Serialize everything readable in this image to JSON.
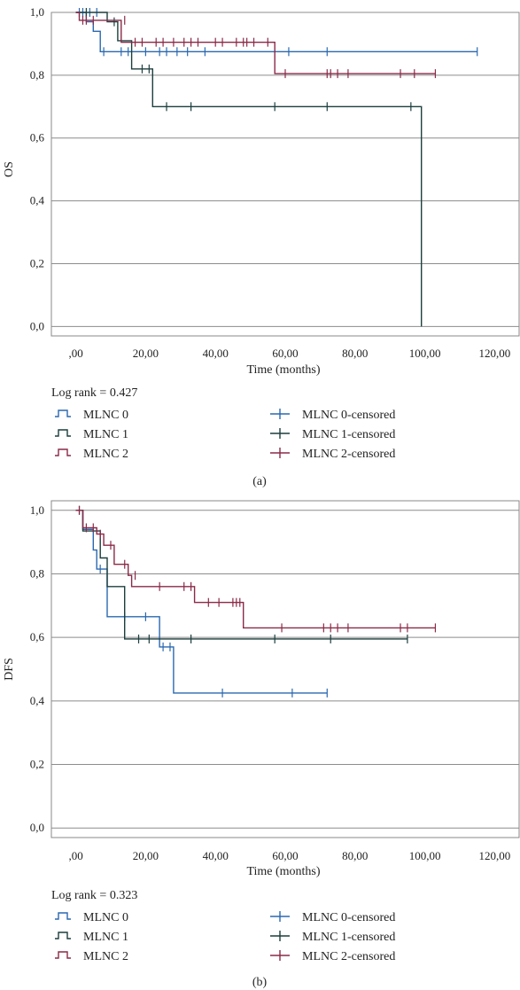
{
  "chart_data": [
    {
      "type": "line",
      "caption": "(a)",
      "ylabel": "OS",
      "xlabel": "Time (months)",
      "x_ticks": [
        ",00",
        "20,00",
        "40,00",
        "60,00",
        "80,00",
        "100,00",
        "120,00"
      ],
      "y_ticks": [
        "0,0",
        "0,2",
        "0,4",
        "0,6",
        "0,8",
        "1,0"
      ],
      "xlim": [
        -7,
        127
      ],
      "ylim": [
        -0.03,
        1.0
      ],
      "grid": "horizontal",
      "log_rank": "Log rank = 0.427",
      "series": [
        {
          "name": "MLNC 0",
          "color": "#2a68b0",
          "steps": [
            [
              0,
              1.0
            ],
            [
              3,
              1.0
            ],
            [
              3,
              0.97
            ],
            [
              5,
              0.97
            ],
            [
              5,
              0.94
            ],
            [
              7,
              0.94
            ],
            [
              7,
              0.875
            ],
            [
              115,
              0.875
            ]
          ],
          "censored": [
            [
              1,
              1.0
            ],
            [
              2,
              1.0
            ],
            [
              4,
              1.0
            ],
            [
              6,
              1.0
            ],
            [
              8,
              0.875
            ],
            [
              13,
              0.875
            ],
            [
              15,
              0.875
            ],
            [
              20,
              0.875
            ],
            [
              24,
              0.875
            ],
            [
              26,
              0.875
            ],
            [
              29,
              0.875
            ],
            [
              32,
              0.875
            ],
            [
              37,
              0.875
            ],
            [
              61,
              0.875
            ],
            [
              72,
              0.875
            ],
            [
              115,
              0.875
            ]
          ]
        },
        {
          "name": "MLNC 1",
          "color": "#1c3f3d",
          "steps": [
            [
              0,
              1.0
            ],
            [
              9,
              1.0
            ],
            [
              9,
              0.97
            ],
            [
              12,
              0.97
            ],
            [
              12,
              0.91
            ],
            [
              16,
              0.91
            ],
            [
              16,
              0.82
            ],
            [
              22,
              0.82
            ],
            [
              22,
              0.7
            ],
            [
              99,
              0.7
            ],
            [
              99,
              0.0
            ]
          ],
          "censored": [
            [
              3,
              1.0
            ],
            [
              11,
              0.97
            ],
            [
              19,
              0.82
            ],
            [
              21,
              0.82
            ],
            [
              26,
              0.7
            ],
            [
              33,
              0.7
            ],
            [
              57,
              0.7
            ],
            [
              72,
              0.7
            ],
            [
              96,
              0.7
            ]
          ]
        },
        {
          "name": "MLNC 2",
          "color": "#8a2a48",
          "steps": [
            [
              0,
              1.0
            ],
            [
              1,
              1.0
            ],
            [
              1,
              0.975
            ],
            [
              13,
              0.975
            ],
            [
              13,
              0.905
            ],
            [
              57,
              0.905
            ],
            [
              57,
              0.805
            ],
            [
              103,
              0.805
            ]
          ],
          "censored": [
            [
              2,
              0.975
            ],
            [
              3,
              0.975
            ],
            [
              5,
              0.975
            ],
            [
              14,
              0.975
            ],
            [
              17,
              0.905
            ],
            [
              19,
              0.905
            ],
            [
              23,
              0.905
            ],
            [
              25,
              0.905
            ],
            [
              28,
              0.905
            ],
            [
              31,
              0.905
            ],
            [
              33,
              0.905
            ],
            [
              35,
              0.905
            ],
            [
              40,
              0.905
            ],
            [
              42,
              0.905
            ],
            [
              46,
              0.905
            ],
            [
              48,
              0.905
            ],
            [
              49,
              0.905
            ],
            [
              51,
              0.905
            ],
            [
              55,
              0.905
            ],
            [
              60,
              0.805
            ],
            [
              72,
              0.805
            ],
            [
              73,
              0.805
            ],
            [
              75,
              0.805
            ],
            [
              78,
              0.805
            ],
            [
              93,
              0.805
            ],
            [
              97,
              0.805
            ],
            [
              103,
              0.805
            ]
          ]
        }
      ],
      "legend": [
        "MLNC 0",
        "MLNC 1",
        "MLNC 2",
        "MLNC 0-censored",
        "MLNC 1-censored",
        "MLNC 2-censored"
      ]
    },
    {
      "type": "line",
      "caption": "(b)",
      "ylabel": "DFS",
      "xlabel": "Time (months)",
      "x_ticks": [
        ",00",
        "20,00",
        "40,00",
        "60,00",
        "80,00",
        "100,00",
        "120,00"
      ],
      "y_ticks": [
        "0,0",
        "0,2",
        "0,4",
        "0,6",
        "0,8",
        "1,0"
      ],
      "xlim": [
        -7,
        127
      ],
      "ylim": [
        -0.03,
        1.03
      ],
      "grid": "horizontal",
      "log_rank": "Log rank = 0.323",
      "series": [
        {
          "name": "MLNC 0",
          "color": "#2a68b0",
          "steps": [
            [
              0,
              1.0
            ],
            [
              2,
              1.0
            ],
            [
              2,
              0.94
            ],
            [
              5,
              0.94
            ],
            [
              5,
              0.875
            ],
            [
              6,
              0.875
            ],
            [
              6,
              0.815
            ],
            [
              9,
              0.815
            ],
            [
              9,
              0.665
            ],
            [
              24,
              0.665
            ],
            [
              24,
              0.57
            ],
            [
              28,
              0.57
            ],
            [
              28,
              0.425
            ],
            [
              72,
              0.425
            ]
          ],
          "censored": [
            [
              7,
              0.815
            ],
            [
              14,
              0.665
            ],
            [
              20,
              0.665
            ],
            [
              25,
              0.57
            ],
            [
              27,
              0.57
            ],
            [
              42,
              0.425
            ],
            [
              62,
              0.425
            ],
            [
              72,
              0.425
            ]
          ]
        },
        {
          "name": "MLNC 1",
          "color": "#1c3f3d",
          "steps": [
            [
              0,
              1.0
            ],
            [
              2,
              1.0
            ],
            [
              2,
              0.935
            ],
            [
              7,
              0.935
            ],
            [
              7,
              0.85
            ],
            [
              9,
              0.85
            ],
            [
              9,
              0.76
            ],
            [
              14,
              0.76
            ],
            [
              14,
              0.595
            ],
            [
              95,
              0.595
            ]
          ],
          "censored": [
            [
              1,
              1.0
            ],
            [
              18,
              0.595
            ],
            [
              21,
              0.595
            ],
            [
              33,
              0.595
            ],
            [
              57,
              0.595
            ],
            [
              73,
              0.595
            ],
            [
              95,
              0.595
            ]
          ]
        },
        {
          "name": "MLNC 2",
          "color": "#8a2a48",
          "steps": [
            [
              0,
              1.0
            ],
            [
              2,
              1.0
            ],
            [
              2,
              0.945
            ],
            [
              6,
              0.945
            ],
            [
              6,
              0.925
            ],
            [
              8,
              0.925
            ],
            [
              8,
              0.89
            ],
            [
              11,
              0.89
            ],
            [
              11,
              0.83
            ],
            [
              15,
              0.83
            ],
            [
              15,
              0.795
            ],
            [
              16,
              0.795
            ],
            [
              16,
              0.76
            ],
            [
              34,
              0.76
            ],
            [
              34,
              0.71
            ],
            [
              48,
              0.71
            ],
            [
              48,
              0.63
            ],
            [
              103,
              0.63
            ]
          ],
          "censored": [
            [
              1,
              1.0
            ],
            [
              3,
              0.945
            ],
            [
              5,
              0.945
            ],
            [
              7,
              0.925
            ],
            [
              10,
              0.89
            ],
            [
              14,
              0.83
            ],
            [
              17,
              0.795
            ],
            [
              24,
              0.76
            ],
            [
              31,
              0.76
            ],
            [
              33,
              0.76
            ],
            [
              38,
              0.71
            ],
            [
              41,
              0.71
            ],
            [
              45,
              0.71
            ],
            [
              46,
              0.71
            ],
            [
              47,
              0.71
            ],
            [
              59,
              0.63
            ],
            [
              71,
              0.63
            ],
            [
              73,
              0.63
            ],
            [
              75,
              0.63
            ],
            [
              78,
              0.63
            ],
            [
              93,
              0.63
            ],
            [
              95,
              0.63
            ],
            [
              103,
              0.63
            ]
          ]
        }
      ],
      "legend": [
        "MLNC 0",
        "MLNC 1",
        "MLNC 2",
        "MLNC 0-censored",
        "MLNC 1-censored",
        "MLNC 2-censored"
      ]
    }
  ]
}
